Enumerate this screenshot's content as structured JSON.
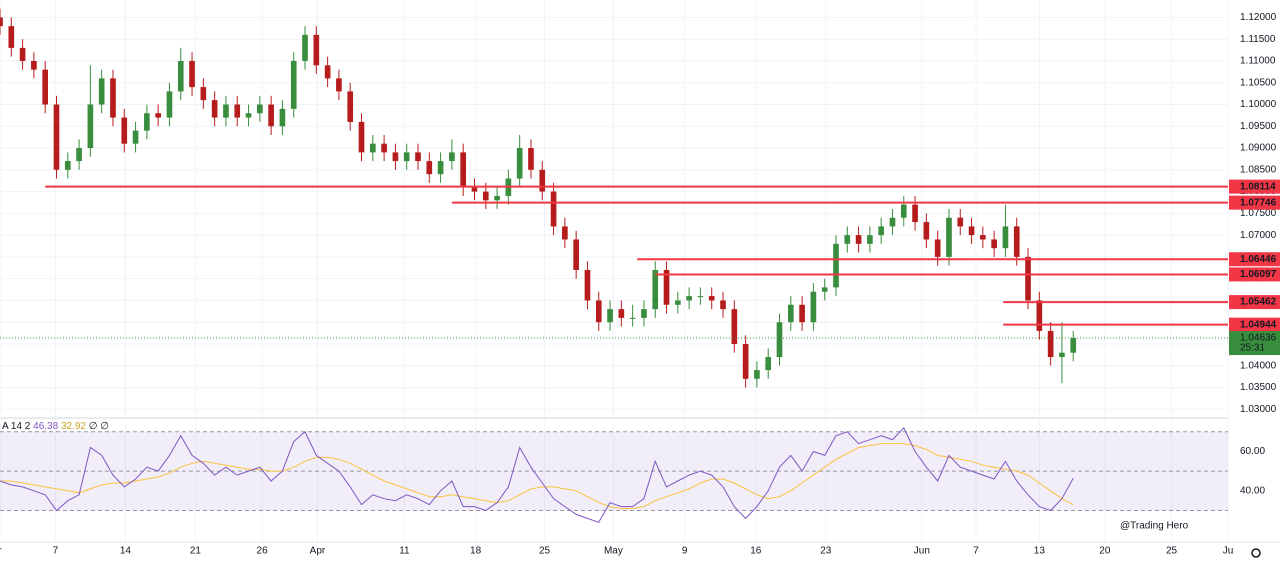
{
  "chart_data": {
    "type": "candlestick",
    "up_color": "#388e3c",
    "down_color": "#b71c1c",
    "candles": [
      [
        1.12,
        1.122,
        1.116,
        1.118
      ],
      [
        1.118,
        1.12,
        1.111,
        1.113
      ],
      [
        1.113,
        1.115,
        1.108,
        1.11
      ],
      [
        1.11,
        1.112,
        1.106,
        1.108
      ],
      [
        1.108,
        1.11,
        1.098,
        1.1
      ],
      [
        1.1,
        1.102,
        1.083,
        1.085
      ],
      [
        1.085,
        1.089,
        1.083,
        1.087
      ],
      [
        1.087,
        1.092,
        1.085,
        1.09
      ],
      [
        1.09,
        1.109,
        1.088,
        1.1
      ],
      [
        1.1,
        1.108,
        1.098,
        1.106
      ],
      [
        1.106,
        1.108,
        1.095,
        1.097
      ],
      [
        1.097,
        1.099,
        1.089,
        1.091
      ],
      [
        1.091,
        1.096,
        1.089,
        1.094
      ],
      [
        1.094,
        1.1,
        1.092,
        1.098
      ],
      [
        1.098,
        1.1,
        1.095,
        1.097
      ],
      [
        1.097,
        1.105,
        1.095,
        1.103
      ],
      [
        1.103,
        1.113,
        1.101,
        1.11
      ],
      [
        1.11,
        1.112,
        1.102,
        1.104
      ],
      [
        1.104,
        1.106,
        1.099,
        1.101
      ],
      [
        1.101,
        1.103,
        1.095,
        1.097
      ],
      [
        1.097,
        1.102,
        1.095,
        1.1
      ],
      [
        1.1,
        1.102,
        1.095,
        1.097
      ],
      [
        1.097,
        1.1,
        1.095,
        1.098
      ],
      [
        1.098,
        1.102,
        1.096,
        1.1
      ],
      [
        1.1,
        1.102,
        1.093,
        1.095
      ],
      [
        1.095,
        1.101,
        1.093,
        1.099
      ],
      [
        1.099,
        1.112,
        1.097,
        1.11
      ],
      [
        1.11,
        1.118,
        1.108,
        1.116
      ],
      [
        1.116,
        1.118,
        1.107,
        1.109
      ],
      [
        1.109,
        1.111,
        1.104,
        1.106
      ],
      [
        1.106,
        1.108,
        1.101,
        1.103
      ],
      [
        1.103,
        1.105,
        1.094,
        1.096
      ],
      [
        1.096,
        1.098,
        1.087,
        1.089
      ],
      [
        1.089,
        1.093,
        1.087,
        1.091
      ],
      [
        1.091,
        1.093,
        1.087,
        1.089
      ],
      [
        1.089,
        1.091,
        1.085,
        1.087
      ],
      [
        1.087,
        1.091,
        1.085,
        1.089
      ],
      [
        1.089,
        1.091,
        1.085,
        1.087
      ],
      [
        1.087,
        1.089,
        1.082,
        1.084
      ],
      [
        1.084,
        1.089,
        1.082,
        1.087
      ],
      [
        1.087,
        1.092,
        1.085,
        1.089
      ],
      [
        1.089,
        1.091,
        1.079,
        1.081
      ],
      [
        1.081,
        1.083,
        1.078,
        1.08
      ],
      [
        1.08,
        1.082,
        1.076,
        1.078
      ],
      [
        1.078,
        1.081,
        1.076,
        1.079
      ],
      [
        1.079,
        1.085,
        1.077,
        1.083
      ],
      [
        1.083,
        1.093,
        1.081,
        1.09
      ],
      [
        1.09,
        1.092,
        1.083,
        1.085
      ],
      [
        1.085,
        1.087,
        1.078,
        1.08
      ],
      [
        1.08,
        1.082,
        1.07,
        1.072
      ],
      [
        1.072,
        1.074,
        1.067,
        1.069
      ],
      [
        1.069,
        1.071,
        1.06,
        1.062
      ],
      [
        1.062,
        1.064,
        1.053,
        1.055
      ],
      [
        1.055,
        1.057,
        1.048,
        1.05
      ],
      [
        1.05,
        1.055,
        1.048,
        1.053
      ],
      [
        1.053,
        1.055,
        1.049,
        1.051
      ],
      [
        1.051,
        1.054,
        1.049,
        1.051
      ],
      [
        1.051,
        1.055,
        1.049,
        1.053
      ],
      [
        1.053,
        1.064,
        1.051,
        1.062
      ],
      [
        1.062,
        1.064,
        1.052,
        1.054
      ],
      [
        1.054,
        1.057,
        1.052,
        1.055
      ],
      [
        1.055,
        1.058,
        1.053,
        1.056
      ],
      [
        1.056,
        1.058,
        1.054,
        1.056
      ],
      [
        1.056,
        1.058,
        1.053,
        1.055
      ],
      [
        1.055,
        1.057,
        1.051,
        1.053
      ],
      [
        1.053,
        1.055,
        1.043,
        1.045
      ],
      [
        1.045,
        1.047,
        1.035,
        1.037
      ],
      [
        1.037,
        1.041,
        1.035,
        1.039
      ],
      [
        1.039,
        1.044,
        1.037,
        1.042
      ],
      [
        1.042,
        1.052,
        1.04,
        1.05
      ],
      [
        1.05,
        1.056,
        1.048,
        1.054
      ],
      [
        1.054,
        1.056,
        1.048,
        1.05
      ],
      [
        1.05,
        1.059,
        1.048,
        1.057
      ],
      [
        1.057,
        1.06,
        1.055,
        1.058
      ],
      [
        1.058,
        1.07,
        1.056,
        1.068
      ],
      [
        1.068,
        1.072,
        1.066,
        1.07
      ],
      [
        1.07,
        1.072,
        1.066,
        1.068
      ],
      [
        1.068,
        1.072,
        1.066,
        1.07
      ],
      [
        1.07,
        1.074,
        1.068,
        1.072
      ],
      [
        1.072,
        1.076,
        1.07,
        1.074
      ],
      [
        1.074,
        1.079,
        1.072,
        1.077
      ],
      [
        1.077,
        1.079,
        1.071,
        1.073
      ],
      [
        1.073,
        1.075,
        1.067,
        1.069
      ],
      [
        1.069,
        1.071,
        1.063,
        1.065
      ],
      [
        1.065,
        1.076,
        1.063,
        1.074
      ],
      [
        1.074,
        1.076,
        1.07,
        1.072
      ],
      [
        1.072,
        1.074,
        1.068,
        1.07
      ],
      [
        1.07,
        1.072,
        1.067,
        1.069
      ],
      [
        1.069,
        1.071,
        1.065,
        1.067
      ],
      [
        1.067,
        1.077,
        1.065,
        1.072
      ],
      [
        1.072,
        1.074,
        1.063,
        1.065
      ],
      [
        1.065,
        1.067,
        1.053,
        1.055
      ],
      [
        1.055,
        1.057,
        1.046,
        1.048
      ],
      [
        1.048,
        1.05,
        1.04,
        1.042
      ],
      [
        1.042,
        1.05,
        1.036,
        1.043
      ],
      [
        1.043,
        1.048,
        1.041,
        1.04636
      ]
    ],
    "xlim": [
      0,
      108.7
    ],
    "xticks": [
      {
        "value": 0,
        "label": "r"
      },
      {
        "value": 4.9,
        "label": "7"
      },
      {
        "value": 11.1,
        "label": "14"
      },
      {
        "value": 17.3,
        "label": "21"
      },
      {
        "value": 23.2,
        "label": "26"
      },
      {
        "value": 28.1,
        "label": "Apr"
      },
      {
        "value": 35.8,
        "label": "11"
      },
      {
        "value": 42.1,
        "label": "18"
      },
      {
        "value": 48.2,
        "label": "25"
      },
      {
        "value": 54.3,
        "label": "May"
      },
      {
        "value": 60.6,
        "label": "9"
      },
      {
        "value": 66.9,
        "label": "16"
      },
      {
        "value": 73.1,
        "label": "23"
      },
      {
        "value": 81.6,
        "label": "Jun"
      },
      {
        "value": 86.4,
        "label": "7"
      },
      {
        "value": 92,
        "label": "13"
      },
      {
        "value": 97.8,
        "label": "20"
      },
      {
        "value": 103.7,
        "label": "25"
      },
      {
        "value": 108.7,
        "label": "Ju"
      }
    ],
    "ylim": [
      1.028,
      1.124
    ],
    "yticks": [
      {
        "value": 1.03,
        "label": "1.03000"
      },
      {
        "value": 1.035,
        "label": "1.03500"
      },
      {
        "value": 1.04,
        "label": "1.04000"
      },
      {
        "value": 1.045,
        "label": "1.04500"
      },
      {
        "value": 1.05,
        "label": "1.05000"
      },
      {
        "value": 1.055,
        "label": "1.05500"
      },
      {
        "value": 1.06,
        "label": "1.06000"
      },
      {
        "value": 1.065,
        "label": "1.06500"
      },
      {
        "value": 1.07,
        "label": "1.07000"
      },
      {
        "value": 1.075,
        "label": "1.07500"
      },
      {
        "value": 1.08,
        "label": "1.08000"
      },
      {
        "value": 1.085,
        "label": "1.08500"
      },
      {
        "value": 1.09,
        "label": "1.09000"
      },
      {
        "value": 1.095,
        "label": "1.09500"
      },
      {
        "value": 1.1,
        "label": "1.10000"
      },
      {
        "value": 1.105,
        "label": "1.10500"
      },
      {
        "value": 1.11,
        "label": "1.11000"
      },
      {
        "value": 1.115,
        "label": "1.11500"
      },
      {
        "value": 1.12,
        "label": "1.12000"
      }
    ],
    "grid": true,
    "level_color": "#f23645",
    "levels": [
      {
        "value": 1.08114,
        "start": 4
      },
      {
        "value": 1.07746,
        "start": 40
      },
      {
        "value": 1.06446,
        "start": 56.4
      },
      {
        "value": 1.06097,
        "start": 58
      },
      {
        "value": 1.05462,
        "start": 88.8
      },
      {
        "value": 1.04944,
        "start": 88.8
      }
    ],
    "last_price": 1.04636,
    "countdown": "25:31",
    "indicator": {
      "label": "A 14 2",
      "extra": "∅ ∅",
      "ylim": [
        15,
        76
      ],
      "band": [
        30,
        70
      ],
      "midline": 50,
      "yticks": [
        {
          "value": 40,
          "label": "40.00"
        },
        {
          "value": 60,
          "label": "60.00"
        }
      ],
      "series": [
        {
          "color": "#7e57c2",
          "values": [
            45,
            43,
            42,
            40,
            38,
            30,
            35,
            38,
            62,
            58,
            48,
            42,
            46,
            52,
            50,
            58,
            68,
            58,
            54,
            48,
            52,
            48,
            50,
            52,
            45,
            50,
            65,
            70,
            58,
            54,
            50,
            42,
            33,
            38,
            36,
            35,
            38,
            36,
            33,
            40,
            45,
            32,
            32,
            30,
            34,
            42,
            62,
            52,
            44,
            36,
            32,
            28,
            26,
            24,
            34,
            32,
            32,
            36,
            55,
            42,
            45,
            48,
            50,
            48,
            42,
            32,
            26,
            32,
            40,
            52,
            58,
            50,
            60,
            58,
            68,
            70,
            64,
            66,
            68,
            66,
            72,
            60,
            52,
            45,
            58,
            52,
            50,
            48,
            46,
            55,
            45,
            38,
            32,
            30,
            36,
            46.38
          ]
        },
        {
          "color": "#f9c23c",
          "values": [
            45,
            45,
            44,
            43,
            42,
            41,
            40,
            39,
            41,
            43,
            44,
            44,
            45,
            46,
            47,
            49,
            52,
            54,
            55,
            54,
            53,
            52,
            51,
            51,
            50,
            50,
            52,
            55,
            57,
            57,
            56,
            54,
            51,
            48,
            45,
            43,
            41,
            39,
            37,
            37,
            38,
            37,
            36,
            35,
            34,
            35,
            38,
            41,
            42,
            42,
            41,
            40,
            37,
            34,
            32,
            31,
            31,
            32,
            35,
            37,
            39,
            41,
            44,
            46,
            46,
            44,
            41,
            38,
            36,
            37,
            40,
            44,
            48,
            52,
            56,
            59,
            62,
            63,
            64,
            64,
            64,
            63,
            61,
            58,
            57,
            56,
            55,
            53,
            52,
            51,
            50,
            48,
            44,
            40,
            36,
            32.92
          ]
        }
      ]
    },
    "watermark": "@Trading Hero"
  }
}
